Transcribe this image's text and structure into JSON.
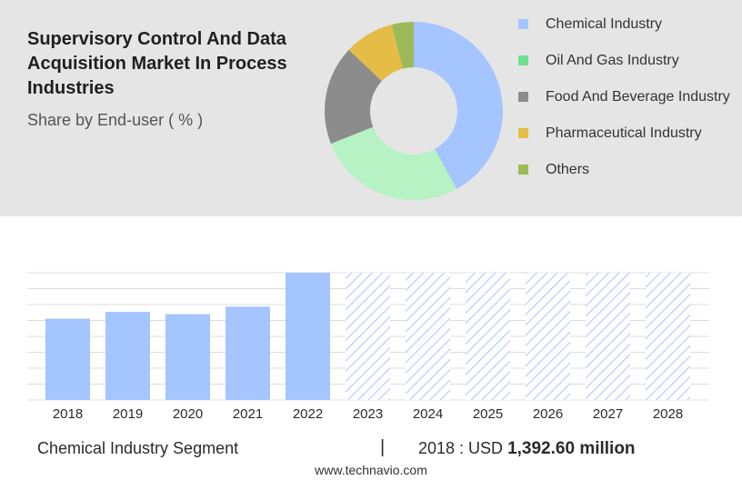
{
  "title": "Supervisory Control And Data Acquisition Market In Process Industries",
  "subtitle": "Share by End-user ( % )",
  "legend": [
    {
      "label": "Chemical Industry",
      "color": "#a4c5ff"
    },
    {
      "label": "Oil And Gas Industry",
      "color": "#6fe08f"
    },
    {
      "label": "Food And Beverage Industry",
      "color": "#8c8c8c"
    },
    {
      "label": "Pharmaceutical Industry",
      "color": "#e4bc46"
    },
    {
      "label": "Others",
      "color": "#9cba5a"
    }
  ],
  "footer": {
    "segment": "Chemical Industry Segment",
    "separator": "|",
    "year_label": "2018 : USD",
    "value_label": "1,392.60 million"
  },
  "source": "www.technavio.com",
  "chart_data": [
    {
      "type": "pie",
      "style": "donut",
      "labels": [
        "Chemical Industry",
        "Oil And Gas Industry",
        "Food And Beverage Industry",
        "Pharmaceutical Industry",
        "Others"
      ],
      "values": [
        42,
        27,
        18,
        9,
        4
      ],
      "colors": [
        "#a4c5ff",
        "#b7f2c4",
        "#8c8c8c",
        "#e4bc46",
        "#9cba5a"
      ]
    },
    {
      "type": "bar",
      "categories": [
        "2018",
        "2019",
        "2020",
        "2021",
        "2022",
        "2023",
        "2024",
        "2025",
        "2026",
        "2027",
        "2028"
      ],
      "values": [
        1392.6,
        1510,
        1470,
        1600,
        2180,
        null,
        null,
        null,
        null,
        null,
        null
      ],
      "forecast": [
        false,
        false,
        false,
        false,
        false,
        true,
        true,
        true,
        true,
        true,
        true
      ],
      "bar_color": "#a4c5ff",
      "ylim": [
        0,
        2180
      ],
      "grid": true,
      "title": "",
      "xlabel": "",
      "ylabel": ""
    }
  ]
}
